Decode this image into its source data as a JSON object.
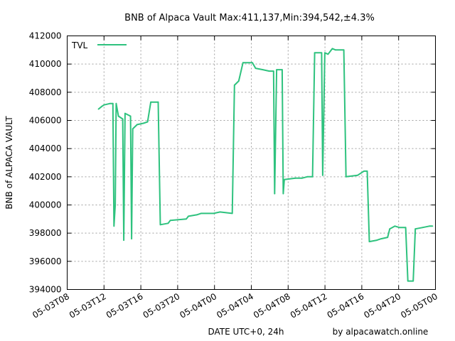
{
  "chart_data": {
    "type": "line",
    "title": "BNB of Alpaca Vault Max:411,137,Min:394,542,±4.3%",
    "xlabel": "DATE UTC+0, 24h",
    "ylabel": "BNB of ALPACA VAULT",
    "credit": "by alpacawatch.online",
    "xlim": [
      "05-03T08",
      "05-05T00"
    ],
    "ylim": [
      394000,
      412000
    ],
    "grid": true,
    "legend_position": "top-left",
    "y_ticks": [
      "394000",
      "396000",
      "398000",
      "400000",
      "402000",
      "404000",
      "406000",
      "408000",
      "410000",
      "412000"
    ],
    "x_ticks": [
      "05-03T08",
      "05-03T12",
      "05-03T16",
      "05-03T20",
      "05-04T00",
      "05-04T04",
      "05-04T08",
      "05-04T12",
      "05-04T16",
      "05-04T20",
      "05-05T00"
    ],
    "series": [
      {
        "name": "TVL",
        "color": "#2ec27e",
        "points": [
          [
            "05-03T11:24",
            406800
          ],
          [
            "05-03T11:46",
            407000
          ],
          [
            "05-03T12:00",
            407100
          ],
          [
            "05-03T12:40",
            407200
          ],
          [
            "05-03T12:58",
            407200
          ],
          [
            "05-03T13:05",
            398500
          ],
          [
            "05-03T13:13",
            400000
          ],
          [
            "05-03T13:19",
            407200
          ],
          [
            "05-03T13:34",
            406300
          ],
          [
            "05-03T14:02",
            406100
          ],
          [
            "05-03T14:09",
            397500
          ],
          [
            "05-03T14:17",
            406500
          ],
          [
            "05-03T14:53",
            406300
          ],
          [
            "05-03T15:00",
            397600
          ],
          [
            "05-03T15:07",
            405400
          ],
          [
            "05-03T15:36",
            405700
          ],
          [
            "05-03T16:17",
            405800
          ],
          [
            "05-03T16:44",
            405900
          ],
          [
            "05-03T17:05",
            407300
          ],
          [
            "05-03T17:53",
            407300
          ],
          [
            "05-03T18:07",
            398600
          ],
          [
            "05-03T18:58",
            398700
          ],
          [
            "05-03T19:12",
            398900
          ],
          [
            "05-03T20:56",
            399000
          ],
          [
            "05-03T21:10",
            399200
          ],
          [
            "05-03T22:04",
            399300
          ],
          [
            "05-03T22:32",
            399400
          ],
          [
            "05-03T23:54",
            399400
          ],
          [
            "05-04T00:36",
            399500
          ],
          [
            "05-04T01:56",
            399400
          ],
          [
            "05-04T02:10",
            408500
          ],
          [
            "05-04T02:38",
            408800
          ],
          [
            "05-04T03:06",
            410100
          ],
          [
            "05-04T04:07",
            410100
          ],
          [
            "05-04T04:28",
            409700
          ],
          [
            "05-04T05:15",
            409600
          ],
          [
            "05-04T05:57",
            409500
          ],
          [
            "05-04T06:25",
            409500
          ],
          [
            "05-04T06:32",
            400800
          ],
          [
            "05-04T06:45",
            409600
          ],
          [
            "05-04T07:21",
            409600
          ],
          [
            "05-04T07:28",
            400800
          ],
          [
            "05-04T07:35",
            401800
          ],
          [
            "05-04T08:48",
            401900
          ],
          [
            "05-04T09:30",
            401900
          ],
          [
            "05-04T10:05",
            402000
          ],
          [
            "05-04T10:39",
            402000
          ],
          [
            "05-04T10:53",
            410800
          ],
          [
            "05-04T11:38",
            410800
          ],
          [
            "05-04T11:45",
            402100
          ],
          [
            "05-04T11:59",
            410800
          ],
          [
            "05-04T12:20",
            410700
          ],
          [
            "05-04T12:48",
            411100
          ],
          [
            "05-04T13:09",
            411000
          ],
          [
            "05-04T14:03",
            411000
          ],
          [
            "05-04T14:17",
            402000
          ],
          [
            "05-04T15:32",
            402100
          ],
          [
            "05-04T16:14",
            402400
          ],
          [
            "05-04T16:35",
            402400
          ],
          [
            "05-04T16:49",
            397400
          ],
          [
            "05-04T17:38",
            397500
          ],
          [
            "05-04T18:06",
            397600
          ],
          [
            "05-04T18:48",
            397700
          ],
          [
            "05-04T19:02",
            398300
          ],
          [
            "05-04T19:36",
            398500
          ],
          [
            "05-04T20:04",
            398400
          ],
          [
            "05-04T20:46",
            398400
          ],
          [
            "05-04T21:00",
            394600
          ],
          [
            "05-04T21:35",
            394600
          ],
          [
            "05-04T21:49",
            398300
          ],
          [
            "05-04T22:38",
            398400
          ],
          [
            "05-04T23:20",
            398500
          ],
          [
            "05-04T23:41",
            398500
          ]
        ]
      }
    ]
  }
}
